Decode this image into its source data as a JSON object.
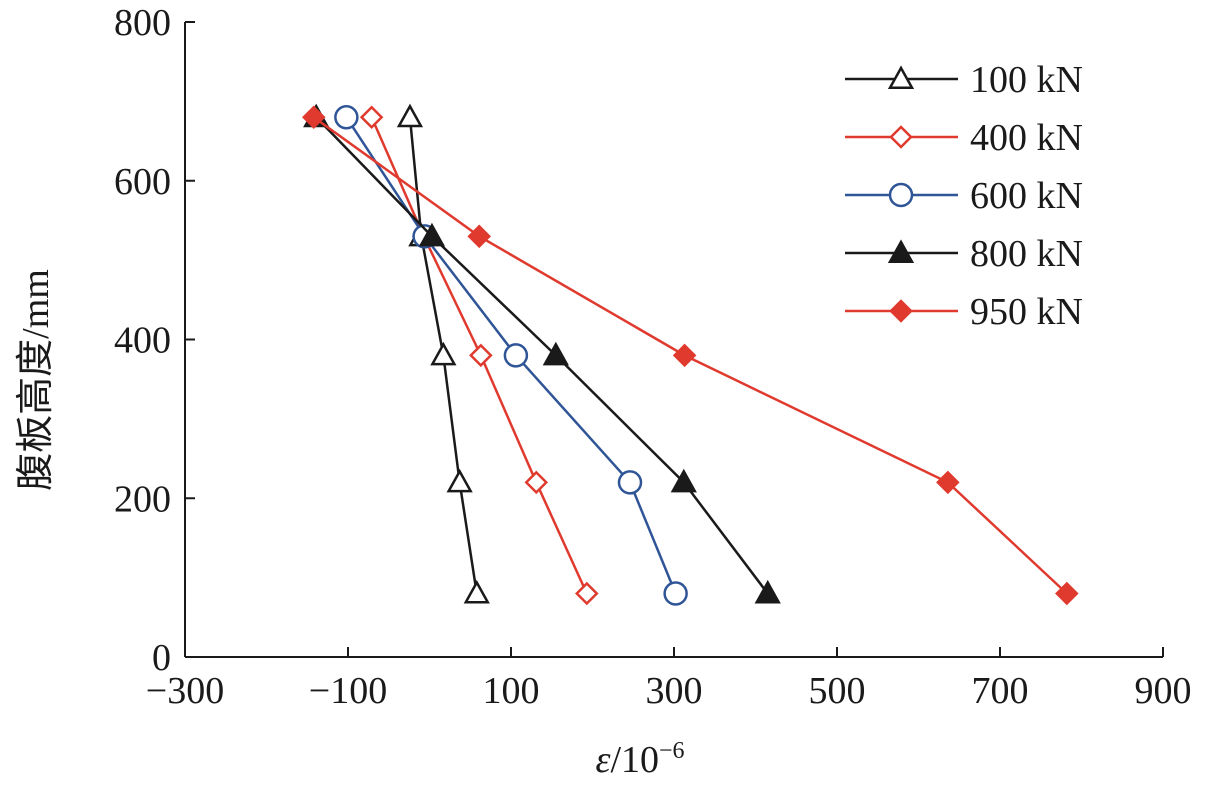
{
  "chart_data": {
    "type": "line",
    "title": "",
    "xlabel_italic": "ε",
    "xlabel_rest": "/10",
    "xlabel_exp": "−6",
    "ylabel": "腹板高度/mm",
    "xlim": [
      -300,
      900
    ],
    "ylim": [
      0,
      800
    ],
    "xticks": [
      -300,
      -100,
      100,
      300,
      500,
      700,
      900
    ],
    "xtick_labels": [
      "−300",
      "−100",
      "100",
      "300",
      "500",
      "700",
      "900"
    ],
    "yticks": [
      0,
      200,
      400,
      600,
      800
    ],
    "ytick_labels": [
      "0",
      "200",
      "400",
      "600",
      "800"
    ],
    "grid": false,
    "legend_position": "top-right",
    "y": [
      680,
      530,
      380,
      220,
      80
    ],
    "series": [
      {
        "name": "100 kN",
        "color": "#1a1a1a",
        "marker": "triangle-open",
        "x": [
          -24,
          -10,
          17,
          37,
          58
        ]
      },
      {
        "name": "400 kN",
        "color": "#e03a2f",
        "marker": "diamond-open",
        "x": [
          -71,
          -7,
          63,
          131,
          193
        ]
      },
      {
        "name": "600 kN",
        "color": "#2f5597",
        "marker": "circle-open",
        "x": [
          -102,
          -6,
          106,
          246,
          302
        ]
      },
      {
        "name": "800 kN",
        "color": "#1a1a1a",
        "marker": "triangle-filled",
        "x": [
          -139,
          3,
          155,
          312,
          415
        ]
      },
      {
        "name": "950 kN",
        "color": "#e03a2f",
        "marker": "diamond-filled",
        "x": [
          -142,
          61,
          313,
          636,
          782
        ]
      }
    ]
  }
}
